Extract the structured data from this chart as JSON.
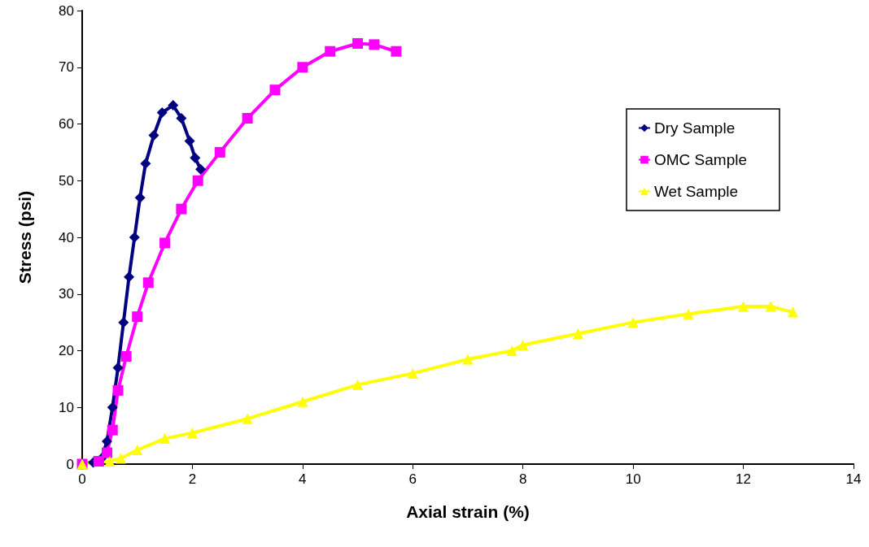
{
  "chart_data": {
    "type": "line",
    "xlabel": "Axial strain (%)",
    "ylabel": "Stress (psi)",
    "xlim": [
      0,
      14
    ],
    "xticks": [
      0,
      2,
      4,
      6,
      8,
      10,
      12,
      14
    ],
    "ylim": [
      0,
      80
    ],
    "yticks": [
      0,
      10,
      20,
      30,
      40,
      50,
      60,
      70,
      80
    ],
    "grid": false,
    "legend": "top right",
    "series": [
      {
        "name": "Dry Sample",
        "color": "#000080",
        "marker": "diamond",
        "x": [
          0,
          0.2,
          0.35,
          0.45,
          0.55,
          0.65,
          0.75,
          0.85,
          0.95,
          1.05,
          1.15,
          1.3,
          1.45,
          1.65,
          1.8,
          1.95,
          2.05,
          2.15
        ],
        "values": [
          0,
          0.3,
          1,
          4,
          10,
          17,
          25,
          33,
          40,
          47,
          53,
          58,
          62,
          63.3,
          61,
          57,
          54,
          52
        ]
      },
      {
        "name": "OMC Sample",
        "color": "#ff00ff",
        "marker": "square",
        "x": [
          0,
          0.3,
          0.45,
          0.55,
          0.65,
          0.8,
          1,
          1.2,
          1.5,
          1.8,
          2.1,
          2.5,
          3,
          3.5,
          4,
          4.5,
          5,
          5.3,
          5.7
        ],
        "values": [
          0,
          0.5,
          2,
          6,
          13,
          19,
          26,
          32,
          39,
          45,
          50,
          55,
          61,
          66,
          70,
          72.8,
          74.2,
          74,
          72.8
        ]
      },
      {
        "name": "Wet Sample",
        "color": "#ffff00",
        "marker": "triangle",
        "x": [
          0,
          0.5,
          0.7,
          1,
          1.5,
          2,
          3,
          4,
          5,
          6,
          7,
          7.8,
          8,
          9,
          10,
          11,
          12,
          12.5,
          12.9
        ],
        "values": [
          0,
          0.5,
          1,
          2.5,
          4.5,
          5.5,
          8,
          11,
          14,
          16,
          18.5,
          20,
          21,
          23,
          25,
          26.5,
          27.8,
          27.8,
          26.8
        ]
      }
    ]
  }
}
